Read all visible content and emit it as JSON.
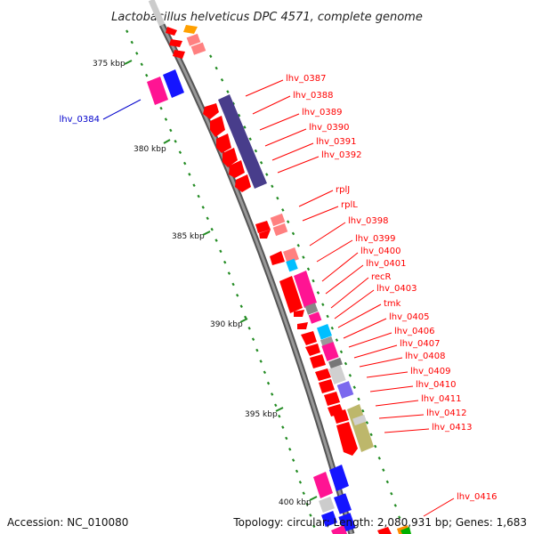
{
  "title": "Lactobacillus helveticus DPC 4571, complete genome",
  "footer": {
    "accession": "Accession: NC_010080",
    "summary": "Topology: circular; Length: 2,080,931 bp; Genes: 1,683"
  },
  "ticks": [
    "375 kbp",
    "380 kbp",
    "385 kbp",
    "390 kbp",
    "395 kbp",
    "400 kbp"
  ],
  "genes_lower": [
    {
      "label": "lhv_0387",
      "color": "#ff0000"
    },
    {
      "label": "lhv_0388",
      "color": "#ff0000"
    },
    {
      "label": "lhv_0389",
      "color": "#ff0000"
    },
    {
      "label": "lhv_0390",
      "color": "#ff0000"
    },
    {
      "label": "lhv_0391",
      "color": "#ff0000"
    },
    {
      "label": "lhv_0392",
      "color": "#ff0000"
    },
    {
      "label": "rplJ",
      "color": "#ff0000"
    },
    {
      "label": "rplL",
      "color": "#ff0000"
    },
    {
      "label": "lhv_0398",
      "color": "#ff0000"
    },
    {
      "label": "lhv_0399",
      "color": "#ff0000"
    },
    {
      "label": "lhv_0400",
      "color": "#ff0000"
    },
    {
      "label": "lhv_0401",
      "color": "#ff0000"
    },
    {
      "label": "recR",
      "color": "#ff0000"
    },
    {
      "label": "lhv_0403",
      "color": "#ff0000"
    },
    {
      "label": "tmk",
      "color": "#ff0000"
    },
    {
      "label": "lhv_0405",
      "color": "#ff0000"
    },
    {
      "label": "lhv_0406",
      "color": "#ff0000"
    },
    {
      "label": "lhv_0407",
      "color": "#ff0000"
    },
    {
      "label": "lhv_0408",
      "color": "#ff0000"
    },
    {
      "label": "lhv_0409",
      "color": "#ff0000"
    },
    {
      "label": "lhv_0410",
      "color": "#ff0000"
    },
    {
      "label": "lhv_0411",
      "color": "#ff0000"
    },
    {
      "label": "lhv_0412",
      "color": "#ff0000"
    },
    {
      "label": "lhv_0413",
      "color": "#ff0000"
    },
    {
      "label": "lhv_0416",
      "color": "#ff0000"
    }
  ],
  "genes_upper": [
    {
      "label": "lhv_0384",
      "color": "#0000cc"
    }
  ]
}
